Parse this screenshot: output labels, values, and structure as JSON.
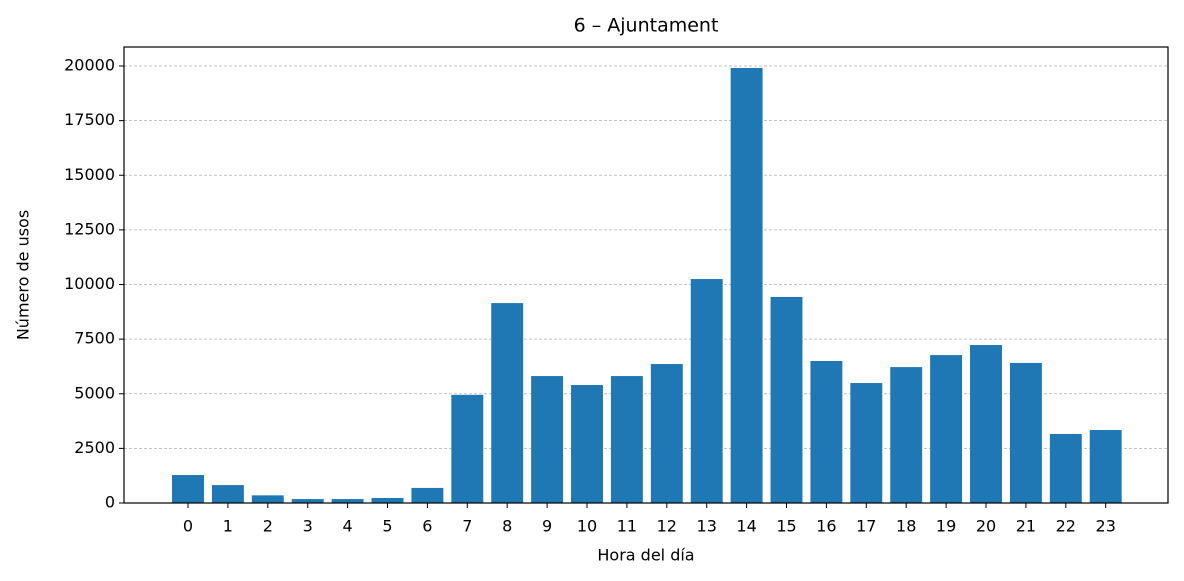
{
  "chart_data": {
    "type": "bar",
    "title": "6 – Ajuntament",
    "x_label": "Hora del día",
    "y_label": "Número de usos",
    "categories": [
      "0",
      "1",
      "2",
      "3",
      "4",
      "5",
      "6",
      "7",
      "8",
      "9",
      "10",
      "11",
      "12",
      "13",
      "14",
      "15",
      "16",
      "17",
      "18",
      "19",
      "20",
      "21",
      "22",
      "23"
    ],
    "values": [
      1280,
      820,
      350,
      180,
      180,
      230,
      690,
      4950,
      9150,
      5810,
      5400,
      5810,
      6360,
      10250,
      19910,
      9430,
      6500,
      5490,
      6220,
      6770,
      7230,
      6410,
      3160,
      3340
    ],
    "color": "#1f77b4",
    "ylim": [
      0,
      20870
    ],
    "yticks": [
      0,
      2500,
      5000,
      7500,
      10000,
      12500,
      15000,
      17500,
      20000
    ],
    "grid": true
  }
}
